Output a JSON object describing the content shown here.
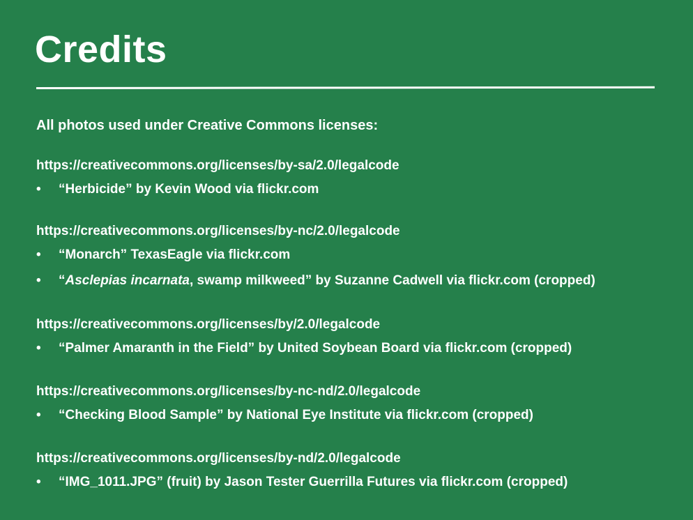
{
  "slide": {
    "title": "Credits",
    "intro": "All photos used under Creative Commons licenses:",
    "bullet_symbol": "•",
    "groups": [
      {
        "license_url": "https://creativecommons.org/licenses/by-sa/2.0/legalcode",
        "items": [
          {
            "text": "“Herbicide” by Kevin Wood via flickr.com"
          }
        ]
      },
      {
        "license_url": "https://creativecommons.org/licenses/by-nc/2.0/legalcode",
        "items": [
          {
            "text": "“Monarch” TexasEagle via flickr.com"
          },
          {
            "prefix": "“",
            "italic": "Asclepias incarnata",
            "suffix": ", swamp milkweed” by Suzanne Cadwell via flickr.com (cropped)"
          }
        ]
      },
      {
        "license_url": "https://creativecommons.org/licenses/by/2.0/legalcode",
        "items": [
          {
            "text": "“Palmer Amaranth in the Field” by United Soybean Board via flickr.com (cropped)"
          }
        ]
      },
      {
        "license_url": "https://creativecommons.org/licenses/by-nc-nd/2.0/legalcode",
        "items": [
          {
            "text": "“Checking Blood Sample” by National Eye Institute via flickr.com (cropped)"
          }
        ]
      },
      {
        "license_url": "https://creativecommons.org/licenses/by-nd/2.0/legalcode",
        "items": [
          {
            "text": "“IMG_1011.JPG” (fruit) by Jason Tester Guerrilla Futures via flickr.com (cropped)"
          }
        ]
      }
    ]
  },
  "colors": {
    "background": "#25804b",
    "text": "#ffffff"
  }
}
